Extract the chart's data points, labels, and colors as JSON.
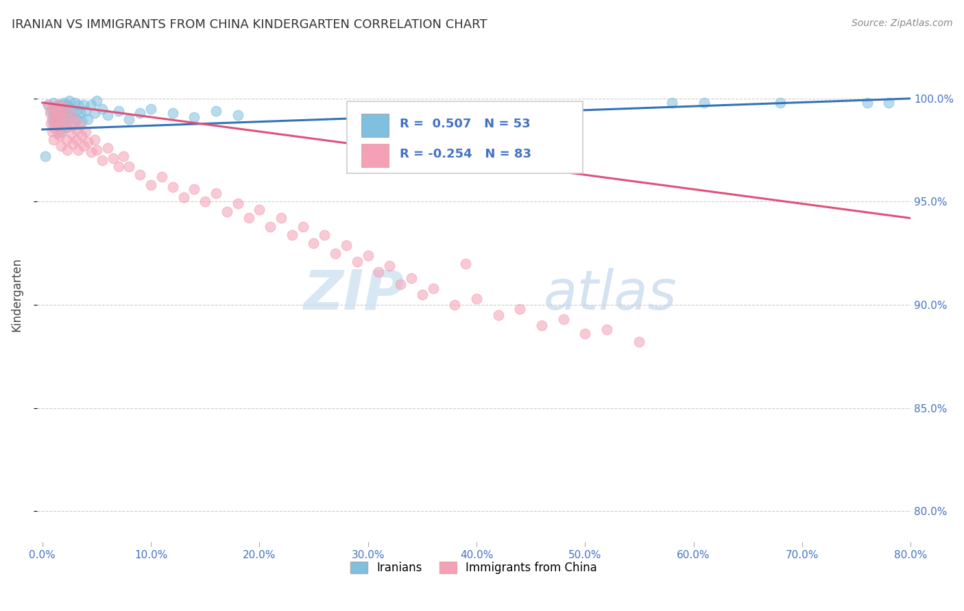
{
  "title": "IRANIAN VS IMMIGRANTS FROM CHINA KINDERGARTEN CORRELATION CHART",
  "source": "Source: ZipAtlas.com",
  "ylabel": "Kindergarten",
  "xlabel_ticks": [
    "0.0%",
    "10.0%",
    "20.0%",
    "30.0%",
    "40.0%",
    "50.0%",
    "60.0%",
    "70.0%",
    "80.0%"
  ],
  "ytick_labels": [
    "80.0%",
    "85.0%",
    "90.0%",
    "95.0%",
    "100.0%"
  ],
  "ytick_values": [
    0.8,
    0.85,
    0.9,
    0.95,
    1.0
  ],
  "xlim": [
    -0.005,
    0.8
  ],
  "ylim": [
    0.785,
    1.025
  ],
  "legend_blue_r": "0.507",
  "legend_blue_n": "53",
  "legend_pink_r": "-0.254",
  "legend_pink_n": "83",
  "legend_label_blue": "Iranians",
  "legend_label_pink": "Immigrants from China",
  "blue_color": "#7fbfdf",
  "pink_color": "#f4a0b5",
  "blue_line_color": "#3472b5",
  "pink_line_color": "#e0507a",
  "blue_scatter": [
    [
      0.005,
      0.997
    ],
    [
      0.008,
      0.994
    ],
    [
      0.009,
      0.99
    ],
    [
      0.01,
      0.998
    ],
    [
      0.01,
      0.993
    ],
    [
      0.01,
      0.988
    ],
    [
      0.012,
      0.996
    ],
    [
      0.013,
      0.992
    ],
    [
      0.014,
      0.988
    ],
    [
      0.015,
      0.997
    ],
    [
      0.016,
      0.993
    ],
    [
      0.017,
      0.989
    ],
    [
      0.017,
      0.984
    ],
    [
      0.018,
      0.997
    ],
    [
      0.019,
      0.993
    ],
    [
      0.02,
      0.998
    ],
    [
      0.02,
      0.994
    ],
    [
      0.021,
      0.99
    ],
    [
      0.022,
      0.986
    ],
    [
      0.023,
      0.997
    ],
    [
      0.024,
      0.993
    ],
    [
      0.025,
      0.999
    ],
    [
      0.026,
      0.995
    ],
    [
      0.027,
      0.991
    ],
    [
      0.028,
      0.987
    ],
    [
      0.03,
      0.998
    ],
    [
      0.031,
      0.994
    ],
    [
      0.032,
      0.99
    ],
    [
      0.033,
      0.997
    ],
    [
      0.035,
      0.993
    ],
    [
      0.036,
      0.989
    ],
    [
      0.038,
      0.997
    ],
    [
      0.04,
      0.994
    ],
    [
      0.042,
      0.99
    ],
    [
      0.045,
      0.997
    ],
    [
      0.048,
      0.993
    ],
    [
      0.05,
      0.999
    ],
    [
      0.055,
      0.995
    ],
    [
      0.06,
      0.992
    ],
    [
      0.07,
      0.994
    ],
    [
      0.08,
      0.99
    ],
    [
      0.09,
      0.993
    ],
    [
      0.1,
      0.995
    ],
    [
      0.12,
      0.993
    ],
    [
      0.14,
      0.991
    ],
    [
      0.16,
      0.994
    ],
    [
      0.18,
      0.992
    ],
    [
      0.003,
      0.972
    ],
    [
      0.58,
      0.998
    ],
    [
      0.61,
      0.998
    ],
    [
      0.68,
      0.998
    ],
    [
      0.76,
      0.998
    ],
    [
      0.78,
      0.998
    ]
  ],
  "pink_scatter": [
    [
      0.005,
      0.997
    ],
    [
      0.007,
      0.993
    ],
    [
      0.008,
      0.988
    ],
    [
      0.009,
      0.984
    ],
    [
      0.01,
      0.996
    ],
    [
      0.01,
      0.991
    ],
    [
      0.01,
      0.986
    ],
    [
      0.01,
      0.98
    ],
    [
      0.012,
      0.993
    ],
    [
      0.013,
      0.988
    ],
    [
      0.014,
      0.983
    ],
    [
      0.015,
      0.997
    ],
    [
      0.015,
      0.992
    ],
    [
      0.015,
      0.987
    ],
    [
      0.016,
      0.982
    ],
    [
      0.017,
      0.977
    ],
    [
      0.018,
      0.993
    ],
    [
      0.019,
      0.988
    ],
    [
      0.02,
      0.996
    ],
    [
      0.02,
      0.991
    ],
    [
      0.021,
      0.986
    ],
    [
      0.022,
      0.98
    ],
    [
      0.023,
      0.975
    ],
    [
      0.025,
      0.993
    ],
    [
      0.026,
      0.988
    ],
    [
      0.027,
      0.983
    ],
    [
      0.028,
      0.978
    ],
    [
      0.03,
      0.99
    ],
    [
      0.031,
      0.985
    ],
    [
      0.032,
      0.98
    ],
    [
      0.033,
      0.975
    ],
    [
      0.035,
      0.987
    ],
    [
      0.036,
      0.982
    ],
    [
      0.038,
      0.977
    ],
    [
      0.04,
      0.984
    ],
    [
      0.042,
      0.979
    ],
    [
      0.045,
      0.974
    ],
    [
      0.048,
      0.98
    ],
    [
      0.05,
      0.975
    ],
    [
      0.055,
      0.97
    ],
    [
      0.06,
      0.976
    ],
    [
      0.065,
      0.971
    ],
    [
      0.07,
      0.967
    ],
    [
      0.075,
      0.972
    ],
    [
      0.08,
      0.967
    ],
    [
      0.09,
      0.963
    ],
    [
      0.1,
      0.958
    ],
    [
      0.11,
      0.962
    ],
    [
      0.12,
      0.957
    ],
    [
      0.13,
      0.952
    ],
    [
      0.14,
      0.956
    ],
    [
      0.15,
      0.95
    ],
    [
      0.16,
      0.954
    ],
    [
      0.17,
      0.945
    ],
    [
      0.18,
      0.949
    ],
    [
      0.19,
      0.942
    ],
    [
      0.2,
      0.946
    ],
    [
      0.21,
      0.938
    ],
    [
      0.22,
      0.942
    ],
    [
      0.23,
      0.934
    ],
    [
      0.24,
      0.938
    ],
    [
      0.25,
      0.93
    ],
    [
      0.26,
      0.934
    ],
    [
      0.27,
      0.925
    ],
    [
      0.28,
      0.929
    ],
    [
      0.29,
      0.921
    ],
    [
      0.3,
      0.924
    ],
    [
      0.31,
      0.916
    ],
    [
      0.32,
      0.919
    ],
    [
      0.33,
      0.91
    ],
    [
      0.34,
      0.913
    ],
    [
      0.35,
      0.905
    ],
    [
      0.36,
      0.908
    ],
    [
      0.38,
      0.9
    ],
    [
      0.4,
      0.903
    ],
    [
      0.42,
      0.895
    ],
    [
      0.44,
      0.898
    ],
    [
      0.46,
      0.89
    ],
    [
      0.48,
      0.893
    ],
    [
      0.5,
      0.886
    ],
    [
      0.52,
      0.888
    ],
    [
      0.39,
      0.92
    ],
    [
      0.55,
      0.882
    ]
  ],
  "watermark_zip": "ZIP",
  "watermark_atlas": "atlas",
  "background_color": "#ffffff",
  "grid_color": "#cccccc",
  "axis_color": "#444444",
  "title_color": "#333333",
  "tick_color": "#4472c4",
  "source_color": "#888888",
  "legend_r_color": "#4472c4",
  "legend_n_color": "#4472c4"
}
